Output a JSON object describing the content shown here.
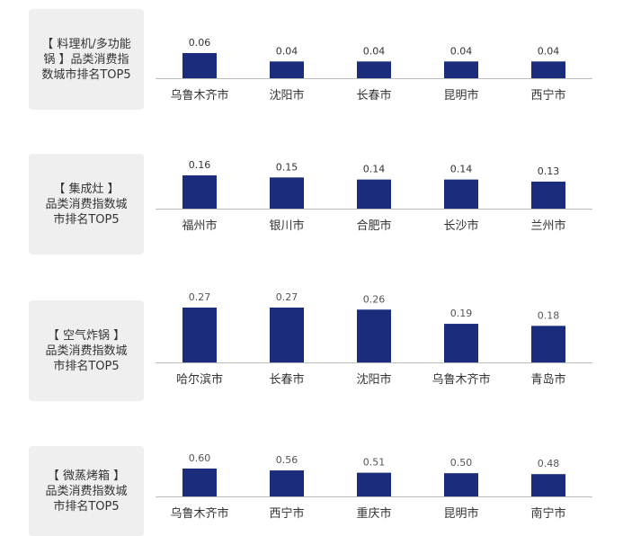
{
  "colors": {
    "bar": "#1a2c7b",
    "axis": "#bbbbbb",
    "label_bg": "#efefef"
  },
  "chart_data": [
    {
      "type": "bar",
      "title": "【 料理机/多功能锅 】品类消费指数城市排名TOP5",
      "label_lines": "【 料理机/多功能\n锅 】品类消费指\n数城市排名TOP5",
      "categories": [
        "乌鲁木齐市",
        "沈阳市",
        "长春市",
        "昆明市",
        "西宁市"
      ],
      "values": [
        0.06,
        0.04,
        0.04,
        0.04,
        0.04
      ],
      "value_labels": [
        "0.06",
        "0.04",
        "0.04",
        "0.04",
        "0.04"
      ]
    },
    {
      "type": "bar",
      "title": "【 集成灶 】品类消费指数城市排名TOP5",
      "label_lines": "【 集成灶 】\n品类消费指数城\n市排名TOP5",
      "categories": [
        "福州市",
        "银川市",
        "合肥市",
        "长沙市",
        "兰州市"
      ],
      "values": [
        0.16,
        0.15,
        0.14,
        0.14,
        0.13
      ],
      "value_labels": [
        "0.16",
        "0.15",
        "0.14",
        "0.14",
        "0.13"
      ]
    },
    {
      "type": "bar",
      "title": "【 空气炸锅 】品类消费指数城市排名TOP5",
      "label_lines": "【 空气炸锅 】\n品类消费指数城\n市排名TOP5",
      "categories": [
        "哈尔滨市",
        "长春市",
        "沈阳市",
        "乌鲁木齐市",
        "青岛市"
      ],
      "values": [
        0.27,
        0.27,
        0.26,
        0.19,
        0.18
      ],
      "value_labels": [
        "0.27",
        "0.27",
        "0.26",
        "0.19",
        "0.18"
      ]
    },
    {
      "type": "bar",
      "title": "【 微蒸烤箱 】品类消费指数城市排名TOP5",
      "label_lines": "【 微蒸烤箱 】\n品类消费指数城\n市排名TOP5",
      "categories": [
        "乌鲁木齐市",
        "西宁市",
        "重庆市",
        "昆明市",
        "南宁市"
      ],
      "values": [
        0.6,
        0.56,
        0.51,
        0.5,
        0.48
      ],
      "value_labels": [
        "0.60",
        "0.56",
        "0.51",
        "0.50",
        "0.48"
      ]
    }
  ]
}
